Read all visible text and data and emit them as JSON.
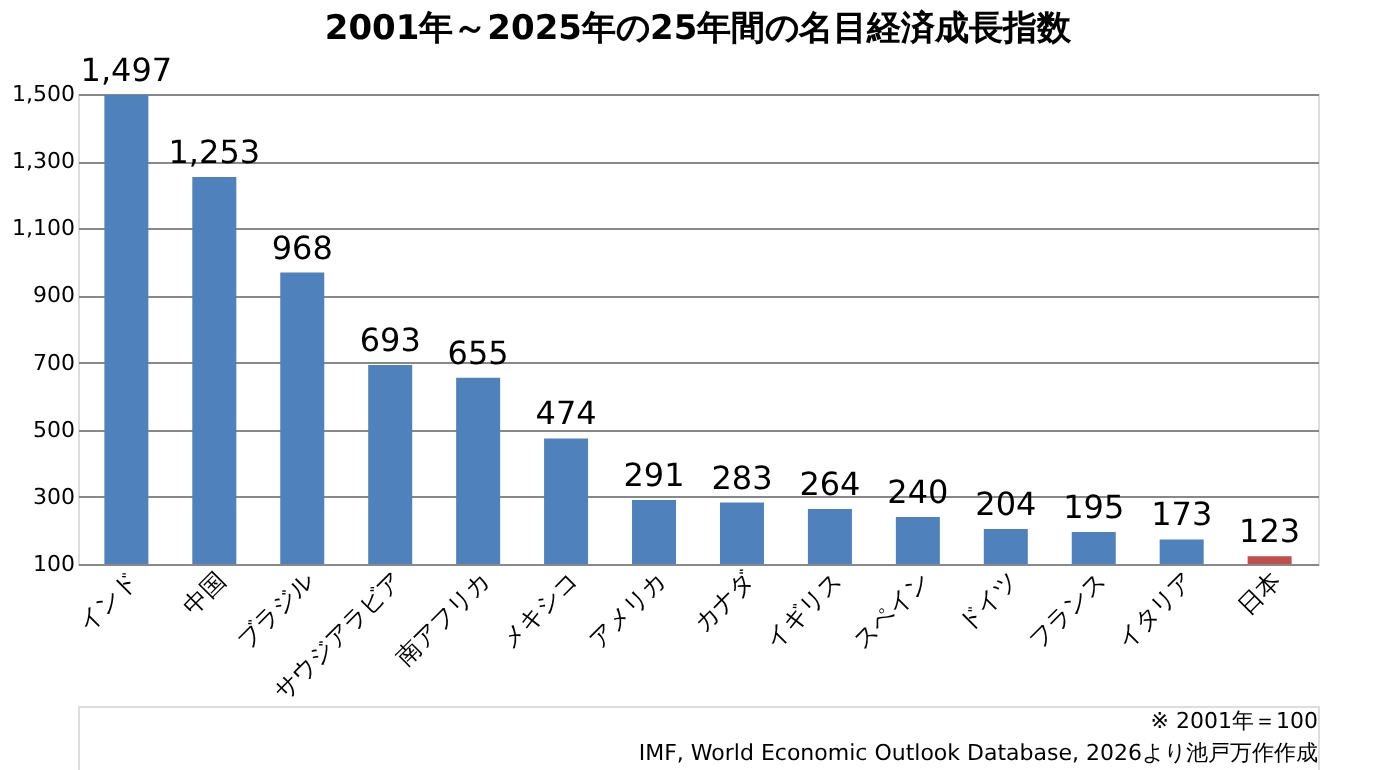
{
  "chart_data": {
    "type": "bar",
    "title": "2001年～2025年の25年間の名目経済成長指数",
    "categories": [
      "インド",
      "中国",
      "ブラジル",
      "サウジアラビア",
      "南アフリカ",
      "メキシコ",
      "アメリカ",
      "カナダ",
      "イギリス",
      "スペイン",
      "ドイツ",
      "フランス",
      "イタリア",
      "日本"
    ],
    "values": [
      1497,
      1253,
      968,
      693,
      655,
      474,
      291,
      283,
      264,
      240,
      204,
      195,
      173,
      123
    ],
    "colors": [
      "#4f81bd",
      "#4f81bd",
      "#4f81bd",
      "#4f81bd",
      "#4f81bd",
      "#4f81bd",
      "#4f81bd",
      "#4f81bd",
      "#4f81bd",
      "#4f81bd",
      "#4f81bd",
      "#4f81bd",
      "#4f81bd",
      "#c0504d"
    ],
    "value_labels": [
      "1,497",
      "1,253",
      "968",
      "693",
      "655",
      "474",
      "291",
      "283",
      "264",
      "240",
      "204",
      "195",
      "173",
      "123"
    ],
    "ylim": [
      100,
      1500
    ],
    "yticks": [
      100,
      300,
      500,
      700,
      900,
      {
        "value": 1100,
        "label": "1,100"
      },
      {
        "value": 1300,
        "label": "1,300"
      },
      {
        "value": 1500,
        "label": "1,500"
      }
    ],
    "grid": "y",
    "annotations": [
      "※ 2001年＝100",
      "IMF, World Economic Outlook Database, 2026より池戸万作作成"
    ]
  }
}
